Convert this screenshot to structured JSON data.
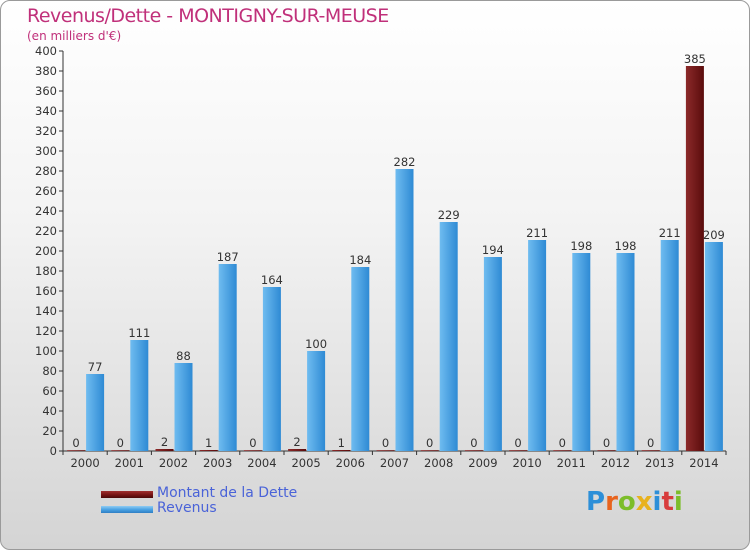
{
  "title": "Revenus/Dette - MONTIGNY-SUR-MEUSE",
  "subtitle": "(en milliers d'€)",
  "colors": {
    "title": "#c0307a",
    "dette": "#7a1515",
    "revenus": "#4aa3e4",
    "legend_text": "#4a63d8"
  },
  "legend": {
    "dette_label": "Montant de la Dette",
    "revenus_label": "Revenus"
  },
  "logo": {
    "text": "Proxiti"
  },
  "chart_data": {
    "type": "bar",
    "categories": [
      "2000",
      "2001",
      "2002",
      "2003",
      "2004",
      "2005",
      "2006",
      "2007",
      "2008",
      "2009",
      "2010",
      "2011",
      "2012",
      "2013",
      "2014"
    ],
    "series": [
      {
        "name": "Montant de la Dette",
        "values": [
          0,
          0,
          2,
          1,
          0,
          2,
          1,
          0,
          0,
          0,
          0,
          0,
          0,
          0,
          385
        ]
      },
      {
        "name": "Revenus",
        "values": [
          77,
          111,
          88,
          187,
          164,
          100,
          184,
          282,
          229,
          194,
          211,
          198,
          198,
          211,
          209
        ]
      }
    ],
    "ylim": [
      0,
      400
    ],
    "yticks": [
      0,
      20,
      40,
      60,
      80,
      100,
      120,
      140,
      160,
      180,
      200,
      220,
      240,
      260,
      280,
      300,
      320,
      340,
      360,
      380,
      400
    ],
    "grid": false
  }
}
